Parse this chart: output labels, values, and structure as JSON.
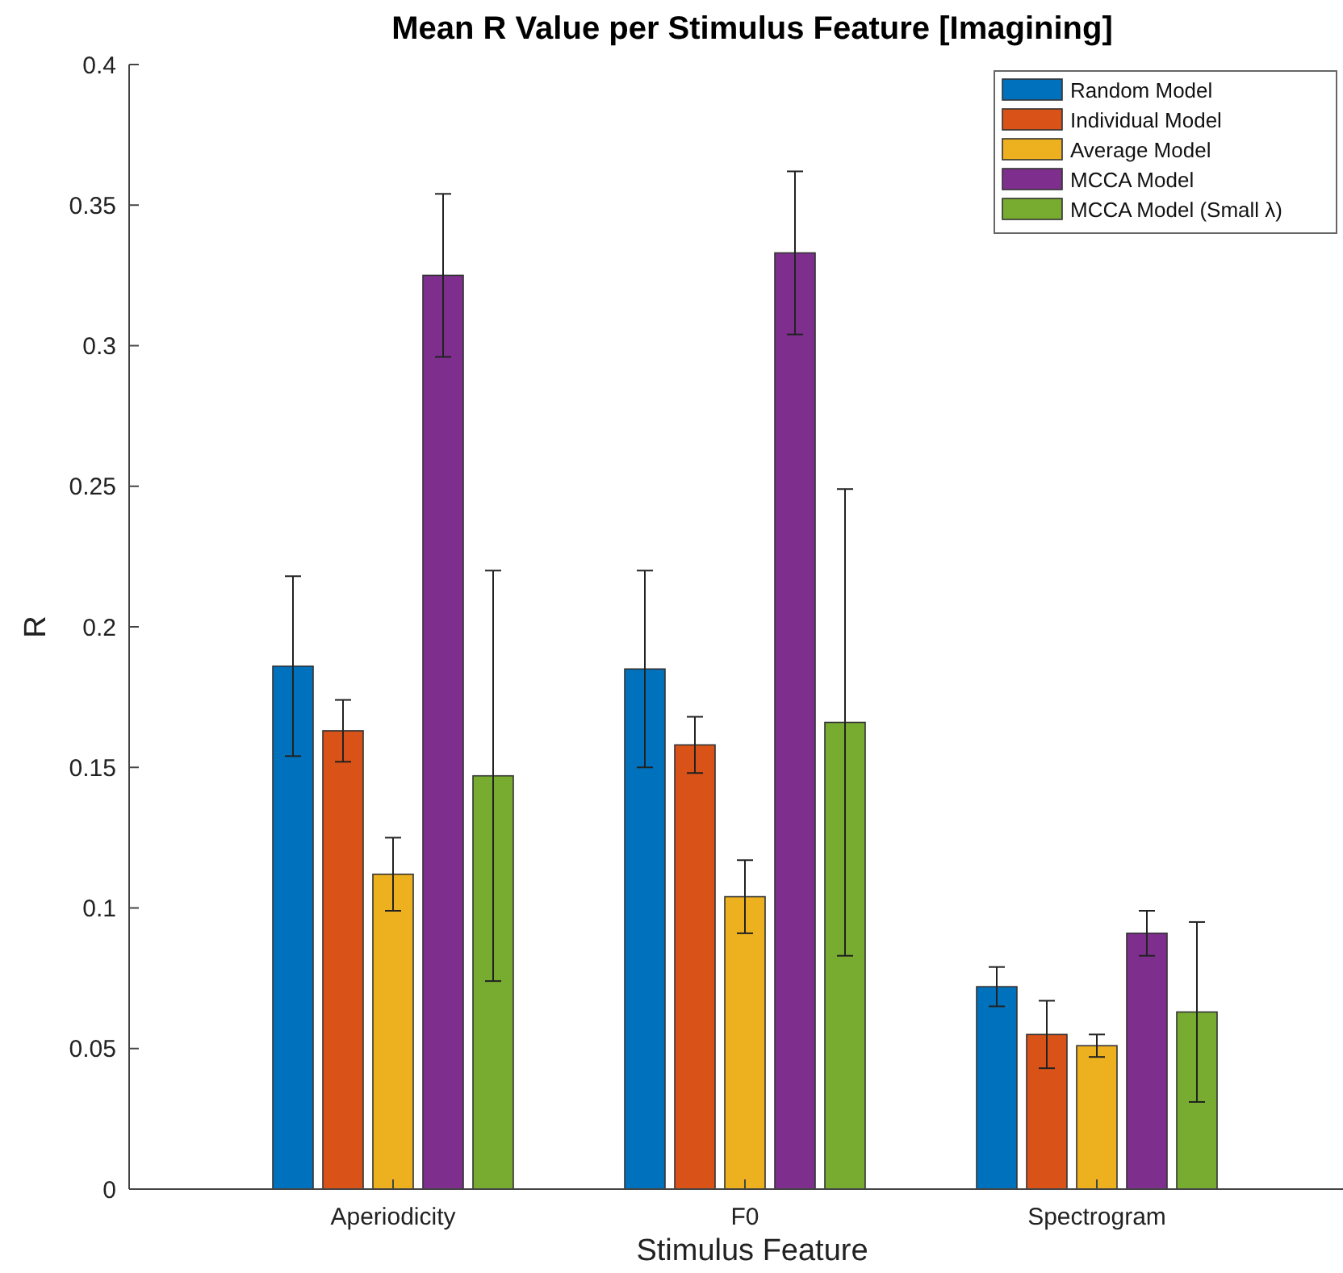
{
  "chart_data": {
    "type": "bar",
    "title": "Mean R Value per Stimulus Feature [Imagining]",
    "xlabel": "Stimulus Feature",
    "ylabel": "R",
    "categories": [
      "Aperiodicity",
      "F0",
      "Spectrogram"
    ],
    "series": [
      {
        "name": "Random Model",
        "color": "#0072bd",
        "values": [
          0.186,
          0.185,
          0.072
        ],
        "errors": [
          0.032,
          0.035,
          0.007
        ]
      },
      {
        "name": "Individual Model",
        "color": "#d95319",
        "values": [
          0.163,
          0.158,
          0.055
        ],
        "errors": [
          0.011,
          0.01,
          0.012
        ]
      },
      {
        "name": "Average Model",
        "color": "#edb120",
        "values": [
          0.112,
          0.104,
          0.051
        ],
        "errors": [
          0.013,
          0.013,
          0.004
        ]
      },
      {
        "name": "MCCA Model",
        "color": "#7e2f8e",
        "values": [
          0.325,
          0.333,
          0.091
        ],
        "errors": [
          0.029,
          0.029,
          0.008
        ]
      },
      {
        "name": "MCCA Model (Small λ)",
        "color": "#77ac30",
        "values": [
          0.147,
          0.166,
          0.063
        ],
        "errors": [
          0.073,
          0.083,
          0.032
        ]
      }
    ],
    "ylim": [
      0,
      0.4
    ],
    "yticks": [
      0,
      0.05,
      0.1,
      0.15,
      0.2,
      0.25,
      0.3,
      0.35,
      0.4
    ],
    "grid": false,
    "legend": "top right"
  }
}
